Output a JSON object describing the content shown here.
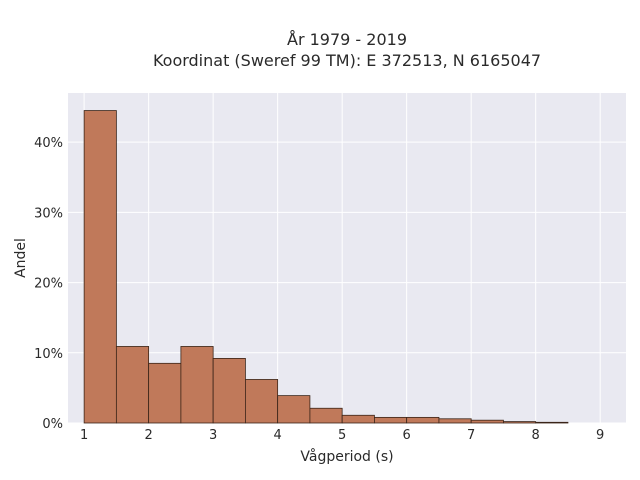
{
  "chart_data": {
    "type": "bar",
    "title_line1": "År 1979 - 2019",
    "title_line2": "Koordinat (Sweref 99 TM): E 372513, N 6165047",
    "xlabel": "Vågperiod (s)",
    "ylabel": "Andel",
    "x_ticks": [
      "1",
      "2",
      "3",
      "4",
      "5",
      "6",
      "7",
      "8",
      "9"
    ],
    "x_tick_values": [
      1,
      2,
      3,
      4,
      5,
      6,
      7,
      8,
      9
    ],
    "y_ticks": [
      "0%",
      "10%",
      "20%",
      "30%",
      "40%"
    ],
    "y_tick_values": [
      0,
      10,
      20,
      30,
      40
    ],
    "xlim": [
      0.75,
      9.4
    ],
    "ylim": [
      0,
      47
    ],
    "grid": true,
    "bin_width": 0.5,
    "bin_starts": [
      1.0,
      1.5,
      2.0,
      2.5,
      3.0,
      3.5,
      4.0,
      4.5,
      5.0,
      5.5,
      6.0,
      6.5,
      7.0,
      7.5,
      8.0
    ],
    "values": [
      44.5,
      10.9,
      8.5,
      10.9,
      9.2,
      6.2,
      3.9,
      2.1,
      1.1,
      0.8,
      0.8,
      0.6,
      0.4,
      0.2,
      0.1
    ],
    "unit": "%",
    "colors": {
      "bar_fill": "#c0795a",
      "bar_stroke": "#3a2418",
      "plot_bg": "#e9e9f1",
      "grid": "#ffffff"
    }
  }
}
